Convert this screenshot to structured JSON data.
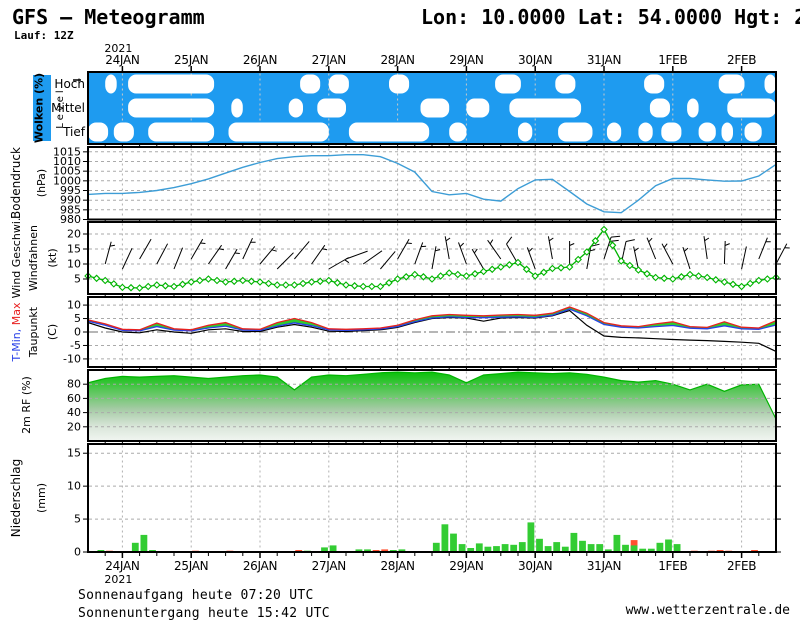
{
  "header": {
    "title": "GFS – Meteogramm",
    "coords": "Lon: 10.0000 Lat: 54.0000 Hgt: 2",
    "run": "Lauf: 12Z"
  },
  "footer": {
    "sunrise": "Sonnenaufgang heute 07:20 UTC",
    "sunset": "Sonnenuntergang heute 15:42 UTC",
    "watermark": "www.wetterzentrale.de"
  },
  "chart_data": {
    "type": "meteogram",
    "x": {
      "unit": "forecast hours (GFS run 12Z)",
      "range_hours": [
        0,
        240
      ],
      "sample_step_h": 6,
      "tick_hours": [
        12,
        36,
        60,
        84,
        108,
        132,
        156,
        180,
        204,
        228
      ],
      "tick_labels": [
        "24JAN",
        "25JAN",
        "26JAN",
        "27JAN",
        "28JAN",
        "29JAN",
        "30JAN",
        "31JAN",
        "1FEB",
        "2FEB"
      ],
      "year_label": "2021"
    },
    "panels": {
      "clouds": {
        "type": "cloud-cover",
        "label": "Wolken (%)",
        "axis_label": "Level",
        "rows": [
          "Hoch",
          "Mittel",
          "Tief"
        ],
        "sky_color": "#1E9BF0",
        "cloud_color": "#FFFFFF",
        "blobs_hours": {
          "Hoch": [
            [
              6,
              10
            ],
            [
              14,
              44
            ],
            [
              74,
              81
            ],
            [
              84,
              91
            ],
            [
              105,
              112
            ],
            [
              142,
              151
            ],
            [
              163,
              170
            ],
            [
              194,
              201
            ],
            [
              220,
              229
            ],
            [
              236,
              240
            ]
          ],
          "Mittel": [
            [
              14,
              44
            ],
            [
              50,
              54
            ],
            [
              70,
              75
            ],
            [
              80,
              90
            ],
            [
              116,
              126
            ],
            [
              132,
              140
            ],
            [
              147,
              172
            ],
            [
              196,
              203
            ],
            [
              209,
              213
            ],
            [
              223,
              240
            ]
          ],
          "Tief": [
            [
              0,
              7
            ],
            [
              9,
              16
            ],
            [
              21,
              44
            ],
            [
              49,
              84
            ],
            [
              91,
              119
            ],
            [
              126,
              132
            ],
            [
              150,
              155
            ],
            [
              164,
              176
            ],
            [
              181,
              186
            ],
            [
              192,
              197
            ],
            [
              200,
              207
            ],
            [
              213,
              219
            ],
            [
              221,
              225
            ],
            [
              229,
              235
            ]
          ]
        }
      },
      "pressure": {
        "type": "line",
        "ylabel": "Bodendruck",
        "unit": "(hPa)",
        "yticks": [
          1015,
          1010,
          1005,
          1000,
          995,
          990,
          985,
          980
        ],
        "ylim": [
          980,
          1017.5
        ],
        "color": "#3D9DD6",
        "values": [
          993,
          993.5,
          993.5,
          994,
          995,
          996.5,
          998.5,
          1001,
          1004,
          1007,
          1009.5,
          1011.5,
          1012.5,
          1013,
          1013,
          1013.5,
          1013.5,
          1012.5,
          1009,
          1004.5,
          994.5,
          992.8,
          993.5,
          990.5,
          989.5,
          996,
          1000.5,
          1000.8,
          994.5,
          988,
          984,
          983.5,
          990,
          997.5,
          1001.2,
          1001.2,
          1000.5,
          999.8,
          999.9,
          1002.5,
          1008.5
        ]
      },
      "wind": {
        "type": "line-with-barbs",
        "ylabel_speed": "Wind Geschwi.",
        "ylabel_barbs": "Windfahnen",
        "unit": "(kt)",
        "yticks": [
          20,
          15,
          10,
          5
        ],
        "ylim": [
          0,
          24
        ],
        "color": "#00B400",
        "speed": [
          6,
          4.5,
          2.2,
          2,
          3,
          2.5,
          4,
          5,
          4,
          4.5,
          4,
          3,
          3,
          4,
          4.5,
          3,
          2.5,
          2.5,
          5,
          6.5,
          5,
          7,
          6,
          7.5,
          9,
          10.5,
          6,
          8.5,
          9,
          14,
          21.5,
          11,
          8,
          5.5,
          5,
          6.5,
          5.5,
          4,
          2.5,
          4.5,
          5.5
        ],
        "barb_angles": [
          20,
          15,
          25,
          30,
          28,
          22,
          30,
          35,
          30,
          25,
          40,
          45,
          40,
          35,
          60,
          70,
          55,
          40,
          30,
          20,
          10,
          -10,
          -20,
          -30,
          -35,
          -30,
          -20,
          -10,
          0,
          10,
          18,
          12,
          -12,
          -22,
          -28,
          -18,
          -8,
          2,
          12,
          22,
          28
        ]
      },
      "temp": {
        "type": "line",
        "label_min": "T-Min,",
        "label_max": "Max",
        "label_dew": "Taupunkt",
        "unit": "(C)",
        "yticks": [
          10,
          5,
          0,
          -5,
          -10
        ],
        "ylim": [
          -13,
          13
        ],
        "fill_color": "#2ECC2E",
        "series": [
          {
            "name": "T-Max",
            "color": "#E82020",
            "values": [
              4.5,
              3,
              1,
              0.8,
              3.3,
              1.2,
              0.8,
              2.5,
              3.5,
              1.2,
              1,
              3.5,
              5,
              3.5,
              1.2,
              1,
              1.2,
              1.5,
              2.5,
              4.5,
              6,
              6.5,
              6.2,
              6,
              6.3,
              6.5,
              6.2,
              7,
              9.3,
              7,
              3.5,
              2.3,
              2,
              3,
              3.8,
              2,
              1.7,
              3.8,
              1.8,
              1.5,
              4.2
            ]
          },
          {
            "name": "T-Min",
            "color": "#2840E8",
            "values": [
              4,
              2.5,
              0.6,
              0.4,
              2,
              0.7,
              0.4,
              1.5,
              2.2,
              0.7,
              0.6,
              2.2,
              3.4,
              2.3,
              0.8,
              0.6,
              0.8,
              1.1,
              2,
              3.8,
              5.2,
              5.6,
              5.4,
              5.3,
              5.5,
              5.6,
              5.4,
              6.2,
              8.5,
              6,
              2.8,
              1.8,
              1.5,
              2,
              2.4,
              1.4,
              1.2,
              2.3,
              1.2,
              1,
              2.6
            ]
          },
          {
            "name": "Taupunkt",
            "color": "#000000",
            "values": [
              3.5,
              1.5,
              0,
              -0.3,
              0.8,
              0,
              -0.5,
              0.8,
              1.2,
              0.2,
              0.2,
              1.8,
              2.8,
              1.8,
              0.3,
              0.2,
              0.5,
              0.8,
              1.7,
              3.5,
              5,
              5.4,
              5.2,
              4,
              5.2,
              5.4,
              5.2,
              6,
              8,
              2.5,
              -1.5,
              -2,
              -2.2,
              -2.5,
              -2.8,
              -3,
              -3.2,
              -3.5,
              -3.8,
              -4.2,
              -7.2
            ]
          }
        ]
      },
      "rf": {
        "type": "area",
        "ylabel": "2m RF (%)",
        "yticks": [
          80,
          60,
          40,
          20
        ],
        "ylim": [
          0,
          100
        ],
        "color": "#00B400",
        "values": [
          82,
          88,
          91,
          90,
          91,
          92,
          90,
          88,
          90,
          92,
          93,
          90,
          72,
          90,
          93,
          92,
          94,
          96,
          97,
          96,
          97,
          93,
          82,
          93,
          95,
          97,
          96,
          95,
          96,
          94,
          90,
          85,
          83,
          85,
          80,
          72,
          80,
          70,
          79,
          80,
          31
        ]
      },
      "precip": {
        "type": "bar",
        "ylabel": "Niederschlag",
        "unit": "(mm)",
        "yticks": [
          15,
          10,
          5,
          0
        ],
        "ylim": [
          0,
          16.4
        ],
        "rain_color": "#33CC33",
        "shower_color": "#FF5030",
        "bars": [
          [
            3,
            0.3,
            "r"
          ],
          [
            6,
            0.2,
            "s"
          ],
          [
            15,
            1.4,
            "r"
          ],
          [
            18,
            2.6,
            "r"
          ],
          [
            21,
            0.3,
            "r"
          ],
          [
            36,
            0.2,
            "s"
          ],
          [
            48,
            0.2,
            "s"
          ],
          [
            72,
            0.3,
            "s"
          ],
          [
            75,
            0.2,
            "r"
          ],
          [
            81,
            0.7,
            "r"
          ],
          [
            84,
            1.0,
            "r"
          ],
          [
            93,
            0.4,
            "r"
          ],
          [
            96,
            0.4,
            "r"
          ],
          [
            99,
            0.3,
            "s"
          ],
          [
            102,
            0.4,
            "s"
          ],
          [
            105,
            0.3,
            "r"
          ],
          [
            108,
            0.4,
            "r"
          ],
          [
            120,
            1.4,
            "r"
          ],
          [
            123,
            4.2,
            "r"
          ],
          [
            126,
            2.8,
            "r"
          ],
          [
            129,
            1.2,
            "r"
          ],
          [
            132,
            0.6,
            "r"
          ],
          [
            135,
            1.3,
            "r"
          ],
          [
            138,
            0.8,
            "r"
          ],
          [
            141,
            0.9,
            "r"
          ],
          [
            144,
            1.2,
            "r"
          ],
          [
            147,
            1.1,
            "r"
          ],
          [
            150,
            1.5,
            "r"
          ],
          [
            153,
            4.5,
            "r"
          ],
          [
            156,
            2.0,
            "r"
          ],
          [
            159,
            0.9,
            "r"
          ],
          [
            162,
            1.5,
            "r"
          ],
          [
            165,
            0.8,
            "r"
          ],
          [
            168,
            2.9,
            "r"
          ],
          [
            171,
            1.7,
            "r"
          ],
          [
            174,
            1.2,
            "r"
          ],
          [
            177,
            1.2,
            "r"
          ],
          [
            180,
            0.4,
            "r"
          ],
          [
            183,
            2.6,
            "r"
          ],
          [
            186,
            1.1,
            "r"
          ],
          [
            189,
            1.8,
            "s"
          ],
          [
            189,
            1.0,
            "r"
          ],
          [
            192,
            0.5,
            "r"
          ],
          [
            195,
            0.5,
            "r"
          ],
          [
            198,
            1.4,
            "r"
          ],
          [
            201,
            1.9,
            "r"
          ],
          [
            204,
            1.2,
            "r"
          ],
          [
            210,
            0.2,
            "s"
          ],
          [
            216,
            0.2,
            "s"
          ],
          [
            219,
            0.3,
            "s"
          ],
          [
            222,
            0.2,
            "s"
          ],
          [
            231,
            0.3,
            "s"
          ]
        ]
      }
    }
  }
}
